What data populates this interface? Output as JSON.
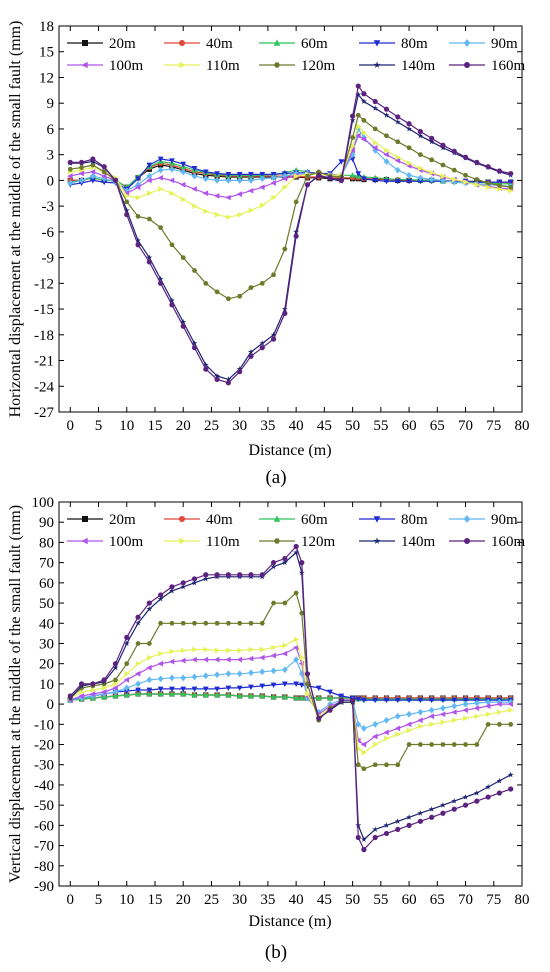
{
  "chart_data": [
    {
      "panel": "(a)",
      "caption": "(a)",
      "type": "line",
      "xlabel": "Distance (m)",
      "ylabel": "Horizontal displacement at the middle of the small fault (mm)",
      "xlim": [
        -2,
        80
      ],
      "ylim": [
        -27,
        18
      ],
      "xticks": [
        0,
        5,
        10,
        15,
        20,
        25,
        30,
        35,
        40,
        45,
        50,
        55,
        60,
        65,
        70,
        75,
        80
      ],
      "yticks": [
        -27,
        -24,
        -21,
        -18,
        -15,
        -12,
        -9,
        -6,
        -3,
        0,
        3,
        6,
        9,
        12,
        15,
        18
      ],
      "legend_position": "top",
      "x": [
        0,
        2,
        4,
        6,
        8,
        10,
        12,
        14,
        16,
        18,
        20,
        22,
        24,
        26,
        28,
        30,
        32,
        34,
        36,
        38,
        40,
        42,
        44,
        46,
        48,
        50,
        51,
        52,
        54,
        56,
        58,
        60,
        62,
        64,
        66,
        68,
        70,
        72,
        74,
        76,
        78
      ],
      "series": [
        {
          "name": "20m",
          "values": [
            0,
            0,
            0.3,
            0,
            0,
            -0.8,
            0.3,
            1.3,
            1.8,
            1.6,
            1.2,
            0.8,
            0.6,
            0.5,
            0.4,
            0.4,
            0.4,
            0.4,
            0.4,
            0.4,
            0.4,
            0.3,
            0.3,
            0.2,
            0.2,
            0.2,
            0.2,
            0.1,
            0.1,
            0.1,
            0,
            0,
            0,
            0,
            0,
            -0.1,
            -0.1,
            -0.1,
            -0.2,
            -0.2,
            -0.2
          ]
        },
        {
          "name": "40m",
          "values": [
            0,
            0,
            0.3,
            0,
            0,
            -0.8,
            0.3,
            1.5,
            2,
            1.8,
            1.4,
            1,
            0.8,
            0.6,
            0.5,
            0.5,
            0.5,
            0.5,
            0.5,
            0.5,
            0.5,
            0.4,
            0.4,
            0.3,
            0.3,
            0.3,
            0.3,
            0.2,
            0.2,
            0.1,
            0.1,
            0,
            0,
            0,
            0,
            -0.1,
            -0.1,
            -0.2,
            -0.2,
            -0.2,
            -0.3
          ]
        },
        {
          "name": "60m",
          "values": [
            -0.2,
            0,
            0.3,
            0,
            0,
            -0.8,
            0.4,
            1.6,
            2.2,
            2,
            1.6,
            1.2,
            0.9,
            0.7,
            0.6,
            0.6,
            0.6,
            0.6,
            0.7,
            0.9,
            1.2,
            1,
            0.8,
            0.7,
            0.6,
            0.6,
            0.5,
            0.4,
            0.3,
            0.2,
            0.1,
            0.1,
            0,
            0,
            -0.1,
            -0.1,
            -0.2,
            -0.2,
            -0.3,
            -0.4,
            -0.4
          ]
        },
        {
          "name": "80m",
          "values": [
            -0.5,
            -0.3,
            0,
            -0.2,
            -0.3,
            -1,
            0.2,
            1.8,
            2.5,
            2.3,
            1.9,
            1.4,
            1,
            0.8,
            0.7,
            0.7,
            0.7,
            0.7,
            0.7,
            0.8,
            0.9,
            0.9,
            0.8,
            0.8,
            2.2,
            2.5,
            0.8,
            0.2,
            0,
            -0.1,
            -0.1,
            -0.1,
            -0.1,
            -0.1,
            -0.1,
            -0.1,
            -0.1,
            -0.2,
            -0.2,
            -0.2,
            -0.2
          ]
        },
        {
          "name": "90m",
          "values": [
            -0.3,
            0,
            0.5,
            0.2,
            -0.2,
            -1.2,
            -0.5,
            0.5,
            1.2,
            1.3,
            1,
            0.5,
            0.2,
            0,
            0,
            0,
            0,
            0.2,
            0.3,
            0.5,
            0.8,
            0.8,
            0.7,
            0.6,
            0.6,
            3,
            6,
            5,
            3.5,
            2.2,
            1.2,
            0.6,
            0.3,
            0.1,
            0,
            -0.2,
            -0.3,
            -0.4,
            -0.5,
            -0.6,
            -0.7
          ]
        },
        {
          "name": "100m",
          "values": [
            0.5,
            0.8,
            1,
            0.5,
            0,
            -1.5,
            -0.8,
            0,
            0.3,
            0,
            -0.5,
            -1,
            -1.5,
            -1.8,
            -2,
            -1.6,
            -1.2,
            -0.8,
            -0.3,
            0.2,
            0.6,
            0.7,
            0.7,
            0.6,
            0.6,
            3.5,
            5.2,
            4.8,
            3.8,
            3,
            2.3,
            1.7,
            1.2,
            0.8,
            0.4,
            0.1,
            -0.2,
            -0.5,
            -0.7,
            -0.9,
            -1
          ]
        },
        {
          "name": "110m",
          "values": [
            1,
            1.2,
            1.5,
            1,
            0.3,
            -1.8,
            -2,
            -1.5,
            -1,
            -1.5,
            -2.2,
            -3,
            -3.6,
            -4,
            -4.3,
            -4,
            -3.5,
            -2.9,
            -2,
            -0.8,
            0.5,
            0.7,
            0.7,
            0.6,
            0.6,
            4,
            6.3,
            5.6,
            4.4,
            3.5,
            2.7,
            2,
            1.4,
            0.9,
            0.5,
            0.1,
            -0.2,
            -0.5,
            -0.8,
            -1,
            -1.2
          ]
        },
        {
          "name": "120m",
          "values": [
            1.3,
            1.5,
            1.8,
            1,
            0,
            -2.5,
            -4.2,
            -4.5,
            -5.5,
            -7.5,
            -9,
            -10.5,
            -12,
            -13,
            -13.8,
            -13.5,
            -12.5,
            -12,
            -11,
            -8,
            -2.5,
            0.5,
            1,
            0.5,
            0.4,
            5,
            7.6,
            7,
            6,
            5.2,
            4.5,
            3.8,
            3,
            2.4,
            1.8,
            1.2,
            0.6,
            0.1,
            -0.3,
            -0.6,
            -0.8
          ]
        },
        {
          "name": "140m",
          "values": [
            2,
            2,
            2.2,
            1.5,
            0,
            -3.5,
            -7,
            -9,
            -11.5,
            -14,
            -16.5,
            -19,
            -21.5,
            -22.8,
            -23.2,
            -22,
            -20,
            -19,
            -18,
            -15,
            -6,
            -0.5,
            0.5,
            0.2,
            -0.1,
            7,
            10,
            9.2,
            8.4,
            7.6,
            6.8,
            6,
            5.2,
            4.5,
            3.8,
            3.2,
            2.6,
            2,
            1.5,
            1,
            0.6
          ]
        },
        {
          "name": "160m",
          "values": [
            2.1,
            2.1,
            2.5,
            1.6,
            0,
            -4,
            -7.5,
            -9.5,
            -12,
            -14.5,
            -17,
            -19.5,
            -22,
            -23.2,
            -23.6,
            -22.3,
            -20.5,
            -19.5,
            -18.5,
            -15.5,
            -6.5,
            -0.5,
            0.6,
            0.3,
            0,
            7.5,
            11,
            10.1,
            9.2,
            8.3,
            7.4,
            6.6,
            5.7,
            4.9,
            4.1,
            3.4,
            2.7,
            2.1,
            1.6,
            1.1,
            0.8
          ]
        }
      ]
    },
    {
      "panel": "(b)",
      "caption": "(b)",
      "type": "line",
      "xlabel": "Distance (m)",
      "ylabel": "Vertical displacement at the middle of the small fault (mm)",
      "xlim": [
        -2,
        80
      ],
      "ylim": [
        -90,
        100
      ],
      "xticks": [
        0,
        5,
        10,
        15,
        20,
        25,
        30,
        35,
        40,
        45,
        50,
        55,
        60,
        65,
        70,
        75,
        80
      ],
      "yticks": [
        -90,
        -80,
        -70,
        -60,
        -50,
        -40,
        -30,
        -20,
        -10,
        0,
        10,
        20,
        30,
        40,
        50,
        60,
        70,
        80,
        90,
        100
      ],
      "legend_position": "top",
      "x": [
        0,
        2,
        4,
        6,
        8,
        10,
        12,
        14,
        16,
        18,
        20,
        22,
        24,
        26,
        28,
        30,
        32,
        34,
        36,
        38,
        40,
        41,
        42,
        44,
        46,
        48,
        50,
        51,
        52,
        54,
        56,
        58,
        60,
        62,
        64,
        66,
        68,
        70,
        72,
        74,
        76,
        78
      ],
      "series": [
        {
          "name": "20m",
          "values": [
            2,
            2.5,
            3,
            3.5,
            4,
            4.5,
            5,
            5,
            5,
            5,
            5,
            4.5,
            4.5,
            4.5,
            4.5,
            4,
            4,
            4,
            3.5,
            3.5,
            3,
            3,
            3,
            3,
            3,
            3,
            3,
            3,
            3,
            3,
            3,
            3,
            3,
            3,
            3,
            3,
            3,
            3,
            3,
            3,
            3,
            3
          ]
        },
        {
          "name": "40m",
          "values": [
            2,
            2.5,
            3,
            3.5,
            4,
            4.5,
            5,
            5,
            5,
            5,
            5,
            4.5,
            4.5,
            4.5,
            4.5,
            4,
            4,
            4,
            3.5,
            3.5,
            3,
            3,
            3,
            3,
            3,
            3,
            3,
            3,
            3,
            3,
            3,
            3,
            3,
            3,
            3,
            3,
            3,
            3,
            3,
            3,
            3,
            3
          ]
        },
        {
          "name": "60m",
          "values": [
            2,
            2.5,
            3,
            3.5,
            4,
            4.5,
            5,
            5,
            5,
            5,
            5,
            4.5,
            4.5,
            4.5,
            4.5,
            4,
            4,
            4,
            3.5,
            3.5,
            3,
            3,
            3,
            3,
            3,
            3,
            3,
            2.5,
            2.5,
            2.5,
            2.5,
            2.5,
            2.5,
            2.5,
            2.5,
            2.5,
            2.5,
            2.5,
            2.5,
            2.5,
            2.5,
            2.5
          ]
        },
        {
          "name": "80m",
          "values": [
            2,
            3,
            4,
            5,
            6,
            6.5,
            7,
            7,
            7.5,
            7.5,
            7.5,
            7.5,
            7.5,
            7.5,
            8,
            8,
            8.5,
            9,
            9.5,
            10,
            10,
            9.5,
            9,
            8,
            6,
            4,
            3,
            2.5,
            2,
            2,
            2,
            2,
            2,
            2,
            2,
            2,
            2,
            2,
            2,
            2,
            2,
            2
          ]
        },
        {
          "name": "90m",
          "values": [
            2,
            3,
            4,
            5,
            6,
            8,
            10,
            12,
            12.5,
            13,
            13,
            13.5,
            14,
            14.5,
            15,
            15,
            15.5,
            16,
            16.5,
            17,
            22,
            15,
            3,
            -4,
            0,
            2,
            2,
            -10,
            -12,
            -10,
            -8,
            -6,
            -5,
            -4,
            -3,
            -2,
            -1,
            0,
            0.5,
            1,
            1,
            1
          ]
        },
        {
          "name": "100m",
          "values": [
            2,
            4,
            5,
            6,
            8,
            12,
            15,
            18,
            20,
            21,
            21.5,
            22,
            22,
            22,
            22,
            22,
            22.5,
            23,
            24,
            25,
            28,
            20,
            4,
            -5,
            -1,
            1,
            1,
            -18,
            -20,
            -16,
            -14,
            -12,
            -10,
            -8,
            -6,
            -5,
            -4,
            -3,
            -2,
            -1,
            0,
            0
          ]
        },
        {
          "name": "110m",
          "values": [
            3,
            6,
            7,
            8,
            10,
            15,
            20,
            23,
            25,
            26,
            26.5,
            27,
            27,
            26.5,
            26.5,
            26.5,
            27,
            27,
            28,
            29,
            32,
            23,
            5,
            -6,
            -2,
            1,
            1,
            -22,
            -24,
            -20,
            -17,
            -15,
            -13,
            -11,
            -10,
            -9,
            -8,
            -7,
            -6,
            -5,
            -4,
            -3
          ]
        },
        {
          "name": "120m",
          "values": [
            3,
            8,
            9,
            10,
            12,
            20,
            30,
            30,
            40,
            40,
            40,
            40,
            40,
            40,
            40,
            40,
            40,
            40,
            50,
            50,
            55,
            45,
            10,
            -8,
            -2,
            1,
            1,
            -30,
            -32,
            -30,
            -30,
            -30,
            -20,
            -20,
            -20,
            -20,
            -20,
            -20,
            -20,
            -10,
            -10,
            -10
          ]
        },
        {
          "name": "140m",
          "values": [
            3,
            9,
            10,
            11,
            18,
            30,
            40,
            47,
            52,
            56,
            58,
            60,
            62,
            63,
            63,
            63,
            63,
            63,
            68,
            70,
            75,
            65,
            15,
            -7,
            -3,
            1,
            1,
            -60,
            -67,
            -62,
            -60,
            -58,
            -56,
            -54,
            -52,
            -50,
            -48,
            -46,
            -44,
            -41,
            -38,
            -35
          ]
        },
        {
          "name": "160m",
          "values": [
            4,
            10,
            10,
            12,
            20,
            33,
            43,
            50,
            54,
            58,
            60,
            62,
            64,
            64,
            64,
            64,
            64,
            64,
            70,
            72,
            78,
            70,
            15,
            -7,
            -3,
            2,
            2,
            -66,
            -72,
            -66,
            -64,
            -62,
            -60,
            -58,
            -56,
            -54,
            -52,
            -50,
            -48,
            -46,
            -44,
            -42
          ]
        }
      ]
    }
  ],
  "styles": [
    {
      "name": "20m",
      "color": "#111111",
      "marker": "square"
    },
    {
      "name": "40m",
      "color": "#e2473a",
      "marker": "circle"
    },
    {
      "name": "60m",
      "color": "#2ec35c",
      "marker": "triangle-up"
    },
    {
      "name": "80m",
      "color": "#1f2bd0",
      "marker": "triangle-down"
    },
    {
      "name": "90m",
      "color": "#62b8f2",
      "marker": "diamond"
    },
    {
      "name": "100m",
      "color": "#b154ea",
      "marker": "triangle-left"
    },
    {
      "name": "110m",
      "color": "#e6f25a",
      "marker": "triangle-right"
    },
    {
      "name": "120m",
      "color": "#6c7a2a",
      "marker": "hexagon"
    },
    {
      "name": "140m",
      "color": "#1c2470",
      "marker": "star"
    },
    {
      "name": "160m",
      "color": "#5c2280",
      "marker": "circle"
    }
  ]
}
